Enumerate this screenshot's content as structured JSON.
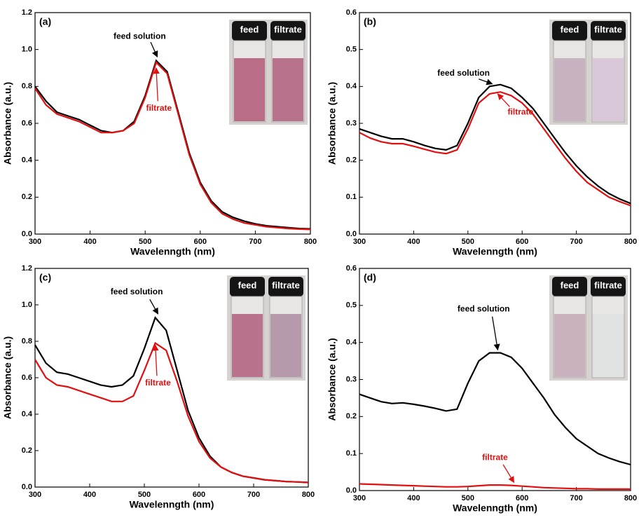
{
  "chart_data": [
    {
      "type": "line",
      "panel_label": "(a)",
      "xlabel": "Wavelenngth (nm)",
      "ylabel": "Absorbance (a.u.)",
      "x": [
        300,
        320,
        340,
        360,
        380,
        400,
        420,
        440,
        460,
        480,
        500,
        520,
        540,
        560,
        580,
        600,
        620,
        640,
        660,
        680,
        700,
        720,
        740,
        760,
        780,
        800
      ],
      "series": [
        {
          "name": "feed solution",
          "color": "#000000",
          "values": [
            0.8,
            0.72,
            0.66,
            0.64,
            0.62,
            0.59,
            0.56,
            0.55,
            0.56,
            0.61,
            0.75,
            0.94,
            0.88,
            0.66,
            0.44,
            0.28,
            0.18,
            0.12,
            0.09,
            0.07,
            0.055,
            0.045,
            0.04,
            0.035,
            0.03,
            0.028
          ]
        },
        {
          "name": "filtrate",
          "color": "#e01010",
          "values": [
            0.79,
            0.7,
            0.65,
            0.63,
            0.61,
            0.58,
            0.55,
            0.55,
            0.56,
            0.6,
            0.74,
            0.93,
            0.87,
            0.65,
            0.43,
            0.27,
            0.17,
            0.11,
            0.08,
            0.06,
            0.05,
            0.04,
            0.035,
            0.03,
            0.027,
            0.025
          ]
        }
      ],
      "xlim": [
        300,
        800
      ],
      "xticks": [
        300,
        400,
        500,
        600,
        700,
        800
      ],
      "ylim": [
        0,
        1.2
      ],
      "yticks": [
        {
          "value": 0,
          "label": "0.0"
        },
        0.2,
        0.4,
        0.6,
        0.8,
        {
          "value": 1,
          "label": "1.0"
        },
        1.2
      ],
      "inset_labels": [
        "feed",
        "filtrate"
      ]
    },
    {
      "type": "line",
      "panel_label": "(b)",
      "xlabel": "Wavelenngth (nm)",
      "ylabel": "Absorbance (a.u.)",
      "x": [
        300,
        320,
        340,
        360,
        380,
        400,
        420,
        440,
        460,
        480,
        500,
        520,
        540,
        560,
        580,
        600,
        620,
        640,
        660,
        680,
        700,
        720,
        740,
        760,
        780,
        800
      ],
      "series": [
        {
          "name": "feed solution",
          "color": "#000000",
          "values": [
            0.285,
            0.275,
            0.265,
            0.258,
            0.258,
            0.25,
            0.24,
            0.232,
            0.228,
            0.24,
            0.3,
            0.37,
            0.4,
            0.405,
            0.395,
            0.37,
            0.34,
            0.3,
            0.26,
            0.22,
            0.185,
            0.155,
            0.13,
            0.11,
            0.095,
            0.083
          ]
        },
        {
          "name": "filtrate",
          "color": "#e01010",
          "values": [
            0.275,
            0.26,
            0.25,
            0.245,
            0.245,
            0.238,
            0.23,
            0.222,
            0.218,
            0.228,
            0.285,
            0.355,
            0.38,
            0.385,
            0.375,
            0.355,
            0.325,
            0.285,
            0.245,
            0.205,
            0.17,
            0.14,
            0.12,
            0.1,
            0.088,
            0.077
          ]
        }
      ],
      "xlim": [
        300,
        800
      ],
      "xticks": [
        300,
        400,
        500,
        600,
        700,
        800
      ],
      "ylim": [
        0,
        0.6
      ],
      "yticks": [
        {
          "value": 0,
          "label": "0.0"
        },
        0.1,
        0.2,
        0.3,
        0.4,
        0.5,
        0.6
      ],
      "inset_labels": [
        "feed",
        "filtrate"
      ]
    },
    {
      "type": "line",
      "panel_label": "(c)",
      "xlabel": "Wavelenngth (nm)",
      "ylabel": "Absorbance (a.u.)",
      "x": [
        300,
        320,
        340,
        360,
        380,
        400,
        420,
        440,
        460,
        480,
        500,
        520,
        540,
        560,
        580,
        600,
        620,
        640,
        660,
        680,
        700,
        720,
        740,
        760,
        780,
        800
      ],
      "series": [
        {
          "name": "feed solution",
          "color": "#000000",
          "values": [
            0.78,
            0.68,
            0.63,
            0.62,
            0.6,
            0.58,
            0.56,
            0.55,
            0.56,
            0.61,
            0.76,
            0.93,
            0.86,
            0.64,
            0.42,
            0.27,
            0.17,
            0.11,
            0.08,
            0.06,
            0.05,
            0.04,
            0.035,
            0.03,
            0.028,
            0.025
          ]
        },
        {
          "name": "filtrate",
          "color": "#e01010",
          "values": [
            0.7,
            0.6,
            0.56,
            0.55,
            0.53,
            0.51,
            0.49,
            0.47,
            0.47,
            0.5,
            0.64,
            0.79,
            0.75,
            0.58,
            0.39,
            0.25,
            0.16,
            0.11,
            0.08,
            0.06,
            0.05,
            0.04,
            0.035,
            0.03,
            0.028,
            0.025
          ]
        }
      ],
      "xlim": [
        300,
        800
      ],
      "xticks": [
        300,
        400,
        500,
        600,
        700,
        800
      ],
      "ylim": [
        0,
        1.2
      ],
      "yticks": [
        {
          "value": 0,
          "label": "0.0"
        },
        0.2,
        0.4,
        0.6,
        0.8,
        {
          "value": 1,
          "label": "1.0"
        },
        1.2
      ],
      "inset_labels": [
        "feed",
        "filtrate"
      ]
    },
    {
      "type": "line",
      "panel_label": "(d)",
      "xlabel": "Wavelenngth (nm)",
      "ylabel": "Absorbance (a.u.)",
      "x": [
        300,
        320,
        340,
        360,
        380,
        400,
        420,
        440,
        460,
        480,
        500,
        520,
        540,
        560,
        580,
        600,
        620,
        640,
        660,
        680,
        700,
        720,
        740,
        760,
        780,
        800
      ],
      "series": [
        {
          "name": "feed solution",
          "color": "#000000",
          "values": [
            0.26,
            0.25,
            0.24,
            0.235,
            0.237,
            0.233,
            0.228,
            0.222,
            0.215,
            0.22,
            0.29,
            0.35,
            0.372,
            0.372,
            0.36,
            0.33,
            0.29,
            0.25,
            0.205,
            0.17,
            0.14,
            0.12,
            0.1,
            0.088,
            0.078,
            0.07
          ]
        },
        {
          "name": "filtrate",
          "color": "#e01010",
          "values": [
            0.018,
            0.017,
            0.016,
            0.015,
            0.014,
            0.013,
            0.012,
            0.011,
            0.01,
            0.01,
            0.011,
            0.013,
            0.015,
            0.015,
            0.014,
            0.012,
            0.01,
            0.008,
            0.007,
            0.006,
            0.005,
            0.005,
            0.004,
            0.004,
            0.004,
            0.004
          ]
        }
      ],
      "xlim": [
        300,
        800
      ],
      "xticks": [
        300,
        400,
        500,
        600,
        700,
        800
      ],
      "ylim": [
        0,
        0.6
      ],
      "yticks": [
        {
          "value": 0,
          "label": "0.0"
        },
        0.1,
        0.2,
        0.3,
        0.4,
        0.5,
        0.6
      ],
      "inset_labels": [
        "feed",
        "filtrate"
      ]
    }
  ]
}
